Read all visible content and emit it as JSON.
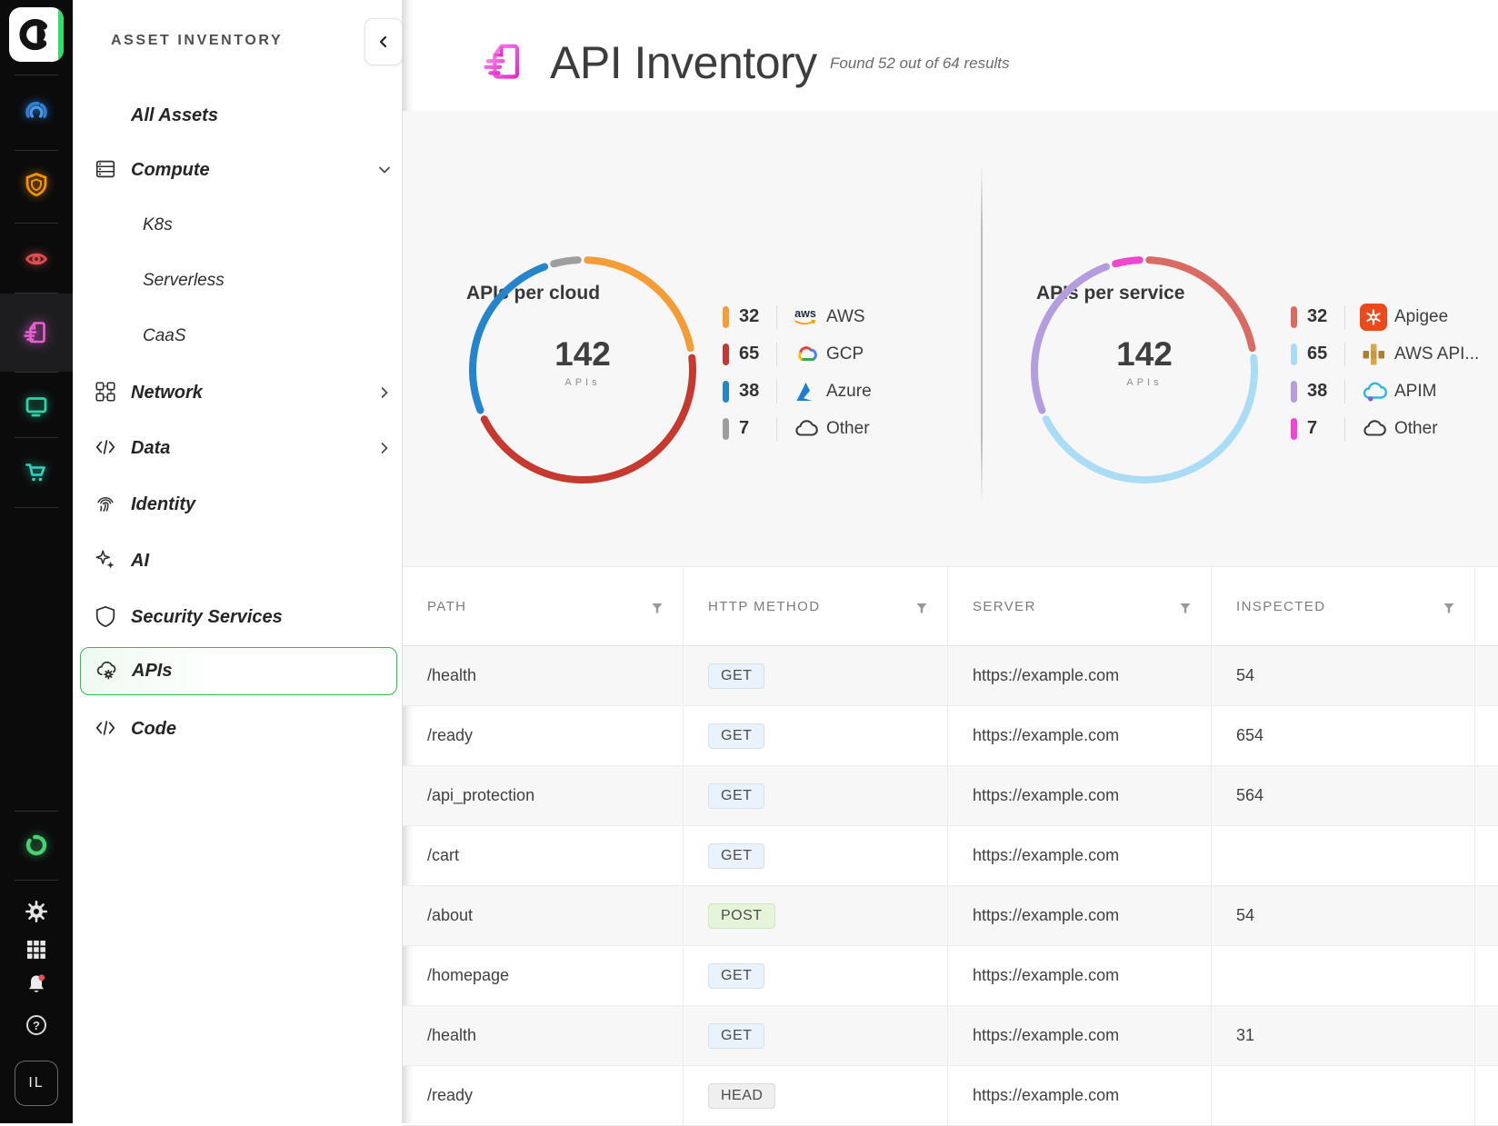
{
  "rail": {
    "logo": "orca-logo",
    "icons": [
      "gauge-icon",
      "shield-icon",
      "eye-icon",
      "api-doc-icon",
      "monitor-icon",
      "cart-icon"
    ],
    "bottom_icons": [
      "ring-logo-icon",
      "settings-icon",
      "apps-grid-icon",
      "notifications-icon",
      "help-icon"
    ],
    "user_initials": "IL"
  },
  "sidebar": {
    "title": "ASSET INVENTORY",
    "items": [
      {
        "label": "All Assets",
        "level": 1,
        "icon": null,
        "expand": null,
        "selected": false
      },
      {
        "label": "Compute",
        "level": 1,
        "icon": "server-icon",
        "expand": "down",
        "selected": false
      },
      {
        "label": "K8s",
        "level": 2,
        "icon": null,
        "expand": null,
        "selected": false
      },
      {
        "label": "Serverless",
        "level": 2,
        "icon": null,
        "expand": null,
        "selected": false
      },
      {
        "label": "CaaS",
        "level": 2,
        "icon": null,
        "expand": null,
        "selected": false
      },
      {
        "label": "Network",
        "level": 1,
        "icon": "network-icon",
        "expand": "right",
        "selected": false
      },
      {
        "label": "Data",
        "level": 1,
        "icon": "code-icon",
        "expand": "right",
        "selected": false
      },
      {
        "label": "Identity",
        "level": 1,
        "icon": "fingerprint-icon",
        "expand": null,
        "selected": false
      },
      {
        "label": "AI",
        "level": 1,
        "icon": "sparkles-icon",
        "expand": null,
        "selected": false
      },
      {
        "label": "Security Services",
        "level": 1,
        "icon": "shield-outline-icon",
        "expand": null,
        "selected": false
      },
      {
        "label": "APIs",
        "level": 1,
        "icon": "cloud-gear-icon",
        "expand": null,
        "selected": true
      },
      {
        "label": "Code",
        "level": 1,
        "icon": "code-icon",
        "expand": null,
        "selected": false
      }
    ]
  },
  "header": {
    "title": "API Inventory",
    "subtitle": "Found 52 out of 64 results"
  },
  "chart_data": [
    {
      "type": "donut",
      "title": "APIs per cloud",
      "center_value": "142",
      "center_label": "APIs",
      "legend_position": "right",
      "segments": [
        {
          "label": "AWS",
          "value": 32,
          "color": "#F49D37",
          "icon": "aws-icon"
        },
        {
          "label": "GCP",
          "value": 65,
          "color": "#C7392F",
          "icon": "gcp-icon"
        },
        {
          "label": "Azure",
          "value": 38,
          "color": "#2584CE",
          "icon": "azure-icon"
        },
        {
          "label": "Other",
          "value": 7,
          "color": "#9E9E9E",
          "icon": "cloud-outline-icon"
        }
      ]
    },
    {
      "type": "donut",
      "title": "APIs per service",
      "center_value": "142",
      "center_label": "APIs",
      "legend_position": "right",
      "segments": [
        {
          "label": "Apigee",
          "value": 32,
          "color": "#D96B63",
          "icon": "apigee-icon"
        },
        {
          "label": "AWS API...",
          "value": 65,
          "color": "#AADCF5",
          "icon": "aws-api-gateway-icon"
        },
        {
          "label": "APIM",
          "value": 38,
          "color": "#B49DDF",
          "icon": "apim-icon"
        },
        {
          "label": "Other",
          "value": 7,
          "color": "#EF47CE",
          "icon": "cloud-outline-icon"
        }
      ]
    }
  ],
  "table": {
    "columns": [
      {
        "label": "PATH"
      },
      {
        "label": "HTTP METHOD"
      },
      {
        "label": "SERVER"
      },
      {
        "label": "INSPECTED"
      }
    ],
    "rows": [
      {
        "path": "/health",
        "method": "GET",
        "server": "https://example.com",
        "inspected": "54"
      },
      {
        "path": "/ready",
        "method": "GET",
        "server": "https://example.com",
        "inspected": "654"
      },
      {
        "path": "/api_protection",
        "method": "GET",
        "server": "https://example.com",
        "inspected": "564"
      },
      {
        "path": "/cart",
        "method": "GET",
        "server": "https://example.com",
        "inspected": ""
      },
      {
        "path": "/about",
        "method": "POST",
        "server": "https://example.com",
        "inspected": "54"
      },
      {
        "path": "/homepage",
        "method": "GET",
        "server": "https://example.com",
        "inspected": ""
      },
      {
        "path": "/health",
        "method": "GET",
        "server": "https://example.com",
        "inspected": "31"
      },
      {
        "path": "/ready",
        "method": "HEAD",
        "server": "https://example.com",
        "inspected": ""
      }
    ]
  }
}
